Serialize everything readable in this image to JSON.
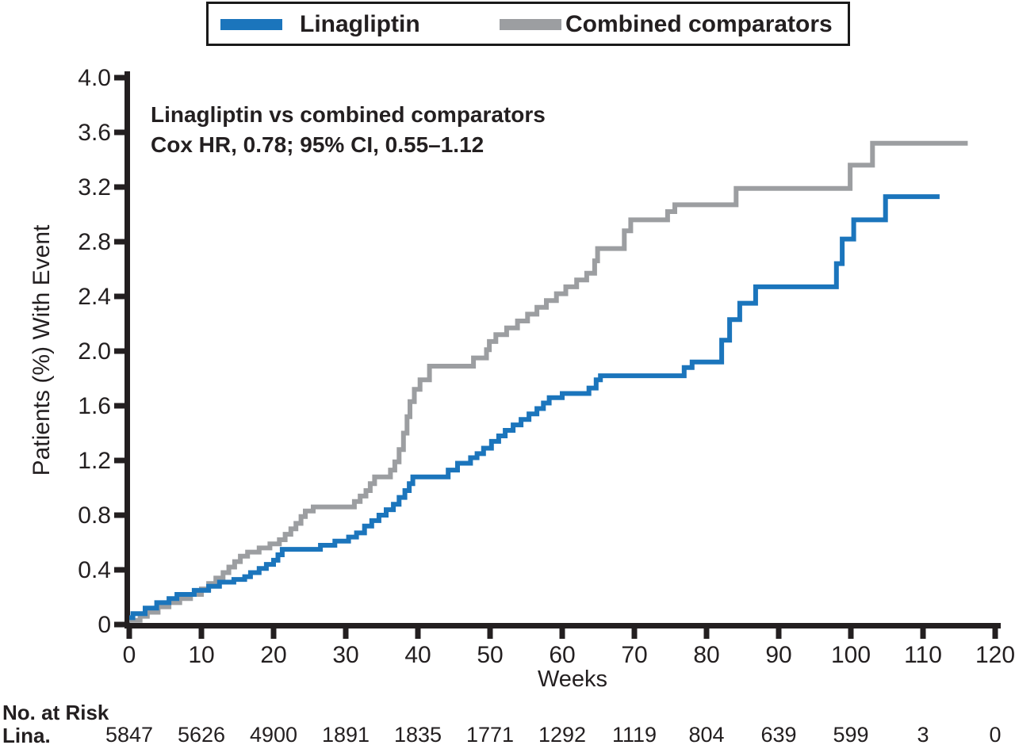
{
  "legend": {
    "items": [
      {
        "label": "Linagliptin",
        "color": "#1b75bc"
      },
      {
        "label": "Combined comparators",
        "color": "#9c9ea1"
      }
    ]
  },
  "annotation": {
    "line1": "Linagliptin vs combined comparators",
    "line2": "Cox HR, 0.78; 95% CI, 0.55–1.12"
  },
  "chart_data": {
    "type": "line",
    "subtype": "kaplan-meier-step",
    "xlabel": "Weeks",
    "ylabel": "Patients (%) With Event",
    "xlim": [
      0,
      120
    ],
    "ylim": [
      0,
      4.0
    ],
    "grid": false,
    "legend_position": "top",
    "x_ticks": [
      0,
      10,
      20,
      30,
      40,
      50,
      60,
      70,
      80,
      90,
      100,
      110,
      120
    ],
    "x_tick_labels": [
      "0",
      "10",
      "20",
      "30",
      "40",
      "50",
      "60",
      "70",
      "80",
      "90",
      "100",
      "110",
      "120"
    ],
    "y_ticks": [
      0,
      0.4,
      0.8,
      1.2,
      1.6,
      2.0,
      2.4,
      2.8,
      3.2,
      3.6,
      4.0
    ],
    "y_tick_labels": [
      "0",
      "0.4",
      "0.8",
      "1.2",
      "1.6",
      "2.0",
      "2.4",
      "2.8",
      "3.2",
      "3.6",
      "4.0"
    ],
    "series": [
      {
        "name": "Linagliptin",
        "color": "#1b75bc",
        "end_week": 112.3,
        "points": [
          [
            0,
            0.05
          ],
          [
            0.5,
            0.08
          ],
          [
            2.2,
            0.12
          ],
          [
            3.8,
            0.16
          ],
          [
            5.5,
            0.19
          ],
          [
            6.6,
            0.22
          ],
          [
            9,
            0.25
          ],
          [
            11,
            0.28
          ],
          [
            12.5,
            0.31
          ],
          [
            14.5,
            0.33
          ],
          [
            16,
            0.35
          ],
          [
            16.8,
            0.38
          ],
          [
            18,
            0.41
          ],
          [
            19,
            0.44
          ],
          [
            20,
            0.47
          ],
          [
            20.6,
            0.51
          ],
          [
            21.2,
            0.55
          ],
          [
            26.5,
            0.58
          ],
          [
            28.5,
            0.61
          ],
          [
            30.4,
            0.64
          ],
          [
            31.5,
            0.67
          ],
          [
            32.6,
            0.72
          ],
          [
            33.6,
            0.76
          ],
          [
            34.6,
            0.8
          ],
          [
            35.6,
            0.84
          ],
          [
            36.6,
            0.88
          ],
          [
            37.4,
            0.93
          ],
          [
            38.2,
            0.98
          ],
          [
            38.8,
            1.03
          ],
          [
            39.3,
            1.08
          ],
          [
            44.2,
            1.13
          ],
          [
            45.5,
            1.18
          ],
          [
            47.3,
            1.22
          ],
          [
            48.2,
            1.25
          ],
          [
            49.1,
            1.29
          ],
          [
            50.2,
            1.34
          ],
          [
            51.2,
            1.38
          ],
          [
            52.1,
            1.42
          ],
          [
            53.2,
            1.46
          ],
          [
            54.3,
            1.5
          ],
          [
            55.4,
            1.54
          ],
          [
            56.5,
            1.58
          ],
          [
            57.4,
            1.62
          ],
          [
            58.2,
            1.66
          ],
          [
            60,
            1.69
          ],
          [
            63.7,
            1.73
          ],
          [
            64.7,
            1.79
          ],
          [
            65.3,
            1.82
          ],
          [
            76.9,
            1.88
          ],
          [
            78,
            1.92
          ],
          [
            82.1,
            2.08
          ],
          [
            83.2,
            2.23
          ],
          [
            84.6,
            2.35
          ],
          [
            86.8,
            2.47
          ],
          [
            98,
            2.64
          ],
          [
            98.8,
            2.82
          ],
          [
            100.4,
            2.96
          ],
          [
            104.8,
            3.13
          ]
        ]
      },
      {
        "name": "Combined comparators",
        "color": "#9c9ea1",
        "end_week": 116.2,
        "points": [
          [
            0,
            0.03
          ],
          [
            1.5,
            0.06
          ],
          [
            2.5,
            0.09
          ],
          [
            4,
            0.13
          ],
          [
            5.5,
            0.16
          ],
          [
            7,
            0.19
          ],
          [
            8.5,
            0.22
          ],
          [
            10,
            0.26
          ],
          [
            11,
            0.3
          ],
          [
            12,
            0.34
          ],
          [
            13,
            0.38
          ],
          [
            13.8,
            0.42
          ],
          [
            14.6,
            0.46
          ],
          [
            15.4,
            0.5
          ],
          [
            16.4,
            0.53
          ],
          [
            18,
            0.56
          ],
          [
            19.5,
            0.59
          ],
          [
            20.8,
            0.62
          ],
          [
            21.6,
            0.66
          ],
          [
            22.4,
            0.7
          ],
          [
            23.1,
            0.74
          ],
          [
            23.8,
            0.79
          ],
          [
            24.4,
            0.83
          ],
          [
            25.5,
            0.86
          ],
          [
            31.2,
            0.9
          ],
          [
            32,
            0.94
          ],
          [
            32.8,
            0.98
          ],
          [
            33.4,
            1.03
          ],
          [
            34,
            1.08
          ],
          [
            36.2,
            1.13
          ],
          [
            36.8,
            1.19
          ],
          [
            37.4,
            1.28
          ],
          [
            38,
            1.4
          ],
          [
            38.5,
            1.52
          ],
          [
            38.9,
            1.63
          ],
          [
            39.5,
            1.72
          ],
          [
            40.3,
            1.79
          ],
          [
            41.6,
            1.89
          ],
          [
            47.7,
            1.95
          ],
          [
            49.5,
            2.01
          ],
          [
            49.9,
            2.07
          ],
          [
            50.8,
            2.12
          ],
          [
            52.3,
            2.17
          ],
          [
            53.8,
            2.22
          ],
          [
            55.2,
            2.27
          ],
          [
            56.5,
            2.32
          ],
          [
            57.8,
            2.37
          ],
          [
            59.2,
            2.42
          ],
          [
            60.5,
            2.47
          ],
          [
            62,
            2.52
          ],
          [
            63.4,
            2.57
          ],
          [
            64.5,
            2.66
          ],
          [
            64.9,
            2.75
          ],
          [
            68.6,
            2.88
          ],
          [
            69.5,
            2.96
          ],
          [
            74.6,
            3.02
          ],
          [
            75.6,
            3.07
          ],
          [
            84.1,
            3.19
          ],
          [
            99.9,
            3.36
          ],
          [
            103,
            3.52
          ]
        ]
      }
    ]
  },
  "risk_table": {
    "header": "No. at Risk",
    "row_label": "Lina.",
    "weeks": [
      0,
      10,
      20,
      30,
      40,
      50,
      60,
      70,
      80,
      90,
      100,
      110,
      120
    ],
    "values": [
      "5847",
      "5626",
      "4900",
      "1891",
      "1835",
      "1771",
      "1292",
      "1119",
      "804",
      "639",
      "599",
      "3",
      "0"
    ]
  },
  "colors": {
    "axis": "#231f20",
    "text": "#231f20",
    "background": "#ffffff"
  }
}
